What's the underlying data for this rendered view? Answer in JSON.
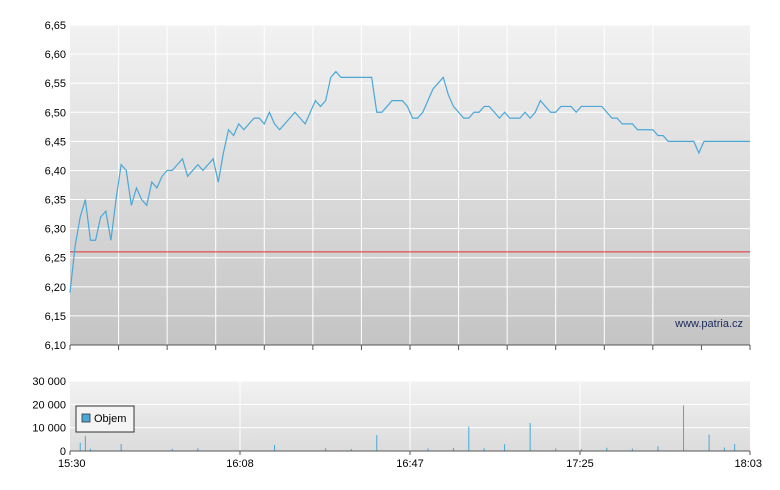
{
  "watermark": "www.patria.cz",
  "chart_data": [
    {
      "type": "line",
      "name": "price",
      "ylim": [
        6.1,
        6.65
      ],
      "yticks": [
        "6,65",
        "6,60",
        "6,55",
        "6,50",
        "6,45",
        "6,40",
        "6,35",
        "6,30",
        "6,25",
        "6,20",
        "6,15",
        "6,10"
      ],
      "reference_line": 6.26,
      "line_color": "#4aa8d8",
      "reference_color": "#e03030",
      "x_minutes": [
        0,
        1,
        2,
        3,
        4,
        5,
        6,
        7,
        8,
        9,
        10,
        11,
        12,
        13,
        14,
        15,
        16,
        17,
        18,
        19,
        20,
        21,
        22,
        23,
        24,
        25,
        26,
        27,
        28,
        29,
        30,
        31,
        32,
        33,
        34,
        35,
        36,
        37,
        38,
        39,
        40,
        41,
        42,
        43,
        44,
        45,
        46,
        47,
        48,
        49,
        50,
        51,
        52,
        53,
        54,
        55,
        56,
        57,
        58,
        59,
        60,
        61,
        62,
        63,
        64,
        65,
        66,
        67,
        68,
        69,
        70,
        71,
        72,
        73,
        74,
        75,
        76,
        77,
        78,
        79,
        80,
        81,
        82,
        83,
        84,
        85,
        86,
        87,
        88,
        89,
        90,
        91,
        92,
        93,
        94,
        95,
        96,
        97,
        98,
        99,
        100,
        101,
        102,
        103,
        104,
        105,
        106,
        107,
        108,
        109,
        110,
        111,
        112,
        113,
        114,
        115,
        116,
        117,
        118,
        119,
        120,
        121,
        122,
        123,
        124,
        125,
        126,
        127,
        128,
        129,
        130,
        131,
        132,
        133
      ],
      "y": [
        6.19,
        6.27,
        6.32,
        6.35,
        6.28,
        6.28,
        6.32,
        6.33,
        6.28,
        6.35,
        6.41,
        6.4,
        6.34,
        6.37,
        6.35,
        6.34,
        6.38,
        6.37,
        6.39,
        6.4,
        6.4,
        6.41,
        6.42,
        6.39,
        6.4,
        6.41,
        6.4,
        6.41,
        6.42,
        6.38,
        6.43,
        6.47,
        6.46,
        6.48,
        6.47,
        6.48,
        6.49,
        6.49,
        6.48,
        6.5,
        6.48,
        6.47,
        6.48,
        6.49,
        6.5,
        6.49,
        6.48,
        6.5,
        6.52,
        6.51,
        6.52,
        6.56,
        6.57,
        6.56,
        6.56,
        6.56,
        6.56,
        6.56,
        6.56,
        6.56,
        6.5,
        6.5,
        6.51,
        6.52,
        6.52,
        6.52,
        6.51,
        6.49,
        6.49,
        6.5,
        6.52,
        6.54,
        6.55,
        6.56,
        6.53,
        6.51,
        6.5,
        6.49,
        6.49,
        6.5,
        6.5,
        6.51,
        6.51,
        6.5,
        6.49,
        6.5,
        6.49,
        6.49,
        6.49,
        6.5,
        6.49,
        6.5,
        6.52,
        6.51,
        6.5,
        6.5,
        6.51,
        6.51,
        6.51,
        6.5,
        6.51,
        6.51,
        6.51,
        6.51,
        6.51,
        6.5,
        6.49,
        6.49,
        6.48,
        6.48,
        6.48,
        6.47,
        6.47,
        6.47,
        6.47,
        6.46,
        6.46,
        6.45,
        6.45,
        6.45,
        6.45,
        6.45,
        6.45,
        6.43,
        6.45,
        6.45,
        6.45,
        6.45,
        6.45,
        6.45,
        6.45,
        6.45,
        6.45,
        6.45
      ]
    },
    {
      "type": "bar",
      "name": "volume",
      "ylim": [
        0,
        30000
      ],
      "yticks": [
        "30 000",
        "20 000",
        "10 000",
        "0"
      ],
      "xticks": [
        "15:30",
        "16:08",
        "16:47",
        "17:25",
        "18:03"
      ],
      "legend": "Objem",
      "legend_placement": "left",
      "bar_color": "#4aa8d8",
      "x_minutes": [
        2,
        3,
        4,
        10,
        20,
        25,
        40,
        50,
        55,
        60,
        70,
        75,
        78,
        81,
        85,
        90,
        95,
        100,
        105,
        110,
        115,
        120,
        125,
        128,
        130
      ],
      "values": [
        3500,
        6500,
        1000,
        3000,
        900,
        1200,
        2600,
        1200,
        900,
        6800,
        1100,
        1300,
        10500,
        1200,
        2900,
        12000,
        1100,
        900,
        1400,
        1000,
        2000,
        19500,
        7000,
        1500,
        3000
      ]
    }
  ]
}
